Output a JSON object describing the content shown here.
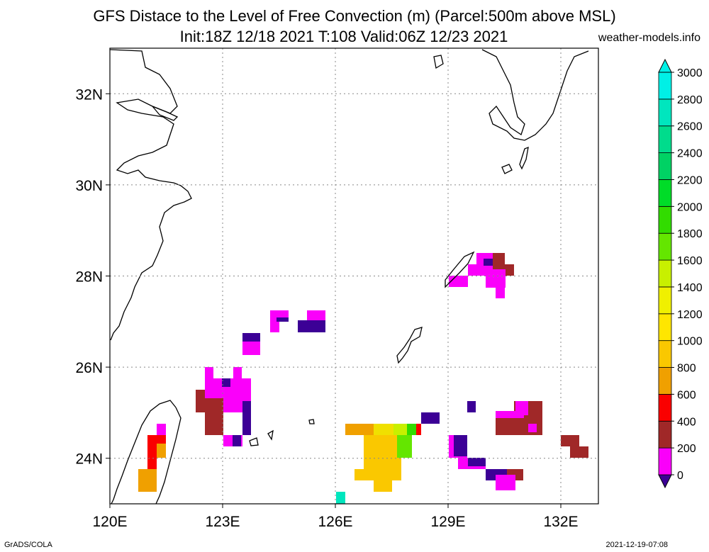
{
  "title": {
    "line1": "GFS Distace to the Level of Free Convection (m) (Parcel:500m above MSL)",
    "line2": "Init:18Z 12/18 2021 T:108 Valid:06Z 12/23 2021",
    "credit": "weather-models.info"
  },
  "footer": {
    "left": "GrADS/COLA",
    "right": "2021-12-19-07:08"
  },
  "map": {
    "lon_range": [
      120,
      133
    ],
    "lat_range": [
      23,
      33
    ],
    "lon_ticks": [
      {
        "value": 120,
        "label": "120E"
      },
      {
        "value": 123,
        "label": "123E"
      },
      {
        "value": 126,
        "label": "126E"
      },
      {
        "value": 129,
        "label": "129E"
      },
      {
        "value": 132,
        "label": "132E"
      }
    ],
    "lat_ticks": [
      {
        "value": 24,
        "label": "24N"
      },
      {
        "value": 26,
        "label": "26N"
      },
      {
        "value": 28,
        "label": "28N"
      },
      {
        "value": 30,
        "label": "30N"
      },
      {
        "value": 32,
        "label": "32N"
      }
    ],
    "grid": true
  },
  "colorbar": {
    "levels": [
      {
        "label": "0",
        "color": "#3c0096"
      },
      {
        "label": "200",
        "color": "#fa00fa"
      },
      {
        "label": "400",
        "color": "#a02828"
      },
      {
        "label": "600",
        "color": "#fa0000"
      },
      {
        "label": "800",
        "color": "#f0a000"
      },
      {
        "label": "1000",
        "color": "#fac800"
      },
      {
        "label": "1200",
        "color": "#ffe600"
      },
      {
        "label": "1400",
        "color": "#f0f000"
      },
      {
        "label": "1600",
        "color": "#c8f000"
      },
      {
        "label": "1800",
        "color": "#64e600"
      },
      {
        "label": "2000",
        "color": "#32dc00"
      },
      {
        "label": "2200",
        "color": "#00dc28"
      },
      {
        "label": "2400",
        "color": "#00d264"
      },
      {
        "label": "2600",
        "color": "#00dc8c"
      },
      {
        "label": "2800",
        "color": "#00e6be"
      },
      {
        "label": "3000",
        "color": "#00f0e6"
      }
    ]
  }
}
